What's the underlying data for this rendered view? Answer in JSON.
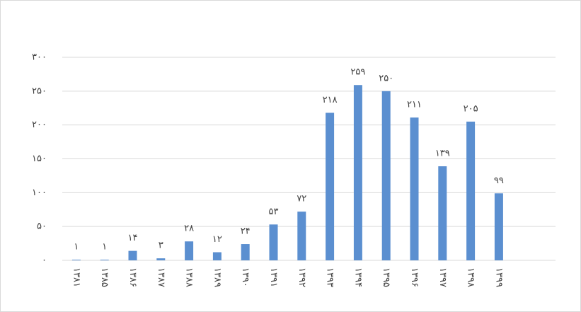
{
  "chart_data": {
    "type": "bar",
    "categories": [
      "۱۳۸۱",
      "۱۳۸۵",
      "۱۳۸۶",
      "۱۳۸۷",
      "۱۳۸۸",
      "۱۳۸۹",
      "۱۳۹۰",
      "۱۳۹۱",
      "۱۳۹۲",
      "۱۳۹۳",
      "۱۳۹۴",
      "۱۳۹۵",
      "۱۳۹۶",
      "۱۳۹۷",
      "۱۳۹۸",
      "۱۳۹۹"
    ],
    "values": [
      1,
      1,
      14,
      3,
      28,
      12,
      24,
      53,
      72,
      218,
      259,
      250,
      211,
      139,
      205,
      99
    ],
    "value_labels": [
      "۱",
      "۱",
      "۱۴",
      "۳",
      "۲۸",
      "۱۲",
      "۲۴",
      "۵۳",
      "۷۲",
      "۲۱۸",
      "۲۵۹",
      "۲۵۰",
      "۲۱۱",
      "۱۳۹",
      "۲۰۵",
      "۹۹"
    ],
    "color": "#5b8fd0",
    "ylim": [
      0,
      300
    ],
    "yticks": [
      {
        "value": 0,
        "label": "۰"
      },
      {
        "value": 50,
        "label": "۵۰"
      },
      {
        "value": 100,
        "label": "۱۰۰"
      },
      {
        "value": 150,
        "label": "۱۵۰"
      },
      {
        "value": 200,
        "label": "۲۰۰"
      },
      {
        "value": 250,
        "label": "۲۵۰"
      },
      {
        "value": 300,
        "label": "۳۰۰"
      }
    ],
    "grid": true
  }
}
